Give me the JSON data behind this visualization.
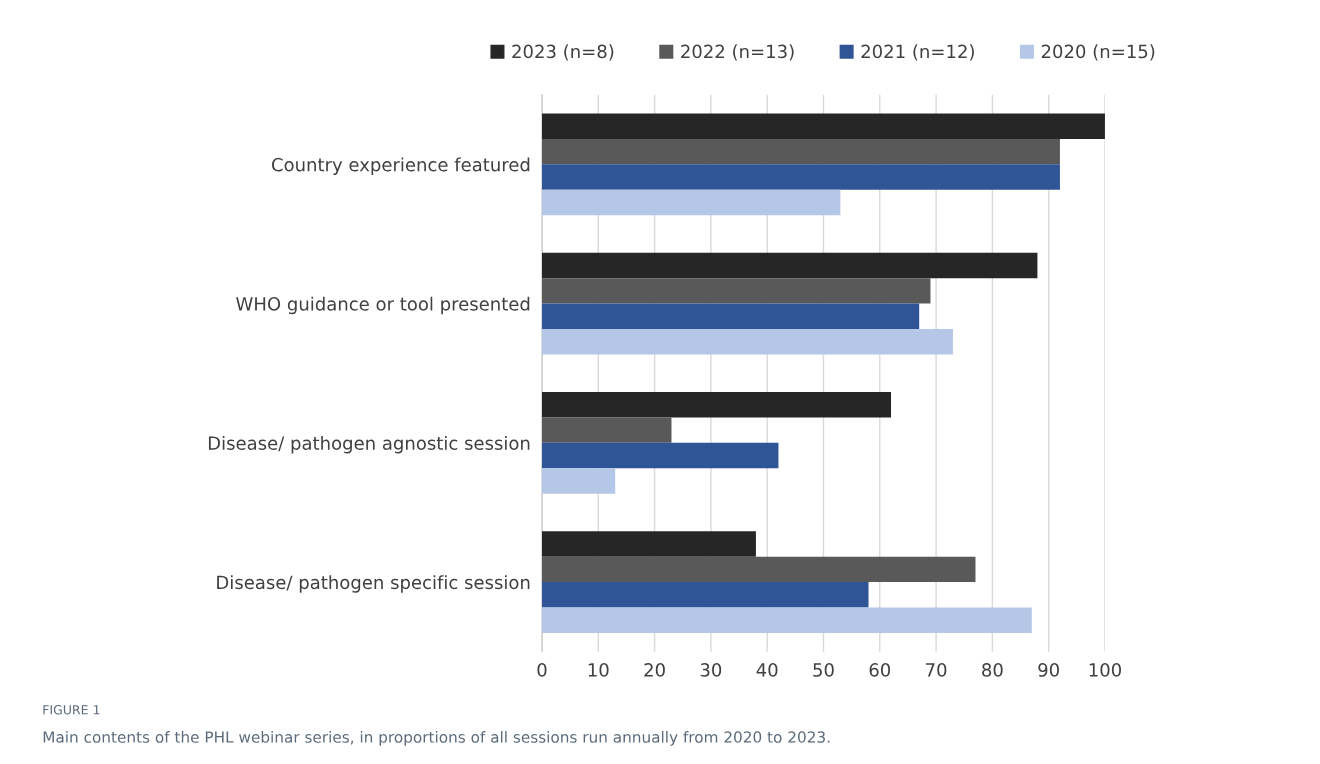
{
  "chart_data": {
    "type": "bar",
    "orientation": "horizontal",
    "categories": [
      "Country experience featured",
      "WHO guidance or tool presented",
      "Disease/ pathogen agnostic session",
      "Disease/ pathogen specific session"
    ],
    "series": [
      {
        "name": "2023 (n=8)",
        "color": "#262626",
        "values": [
          100,
          88,
          62,
          38
        ]
      },
      {
        "name": "2022 (n=13)",
        "color": "#595959",
        "values": [
          92,
          69,
          23,
          77
        ]
      },
      {
        "name": "2021 (n=12)",
        "color": "#2f5597",
        "values": [
          92,
          67,
          42,
          58
        ]
      },
      {
        "name": "2020 (n=15)",
        "color": "#b4c7e7",
        "values": [
          53,
          73,
          13,
          87
        ]
      }
    ],
    "xlim": [
      0,
      100
    ],
    "xticks": [
      0,
      10,
      20,
      30,
      40,
      50,
      60,
      70,
      80,
      90,
      100
    ],
    "grid": "x",
    "legend": "top",
    "annotations": [
      "FIGURE 1",
      "Main contents of the PHL webinar series, in proportions of all sessions run annually from 2020 to 2023."
    ]
  }
}
